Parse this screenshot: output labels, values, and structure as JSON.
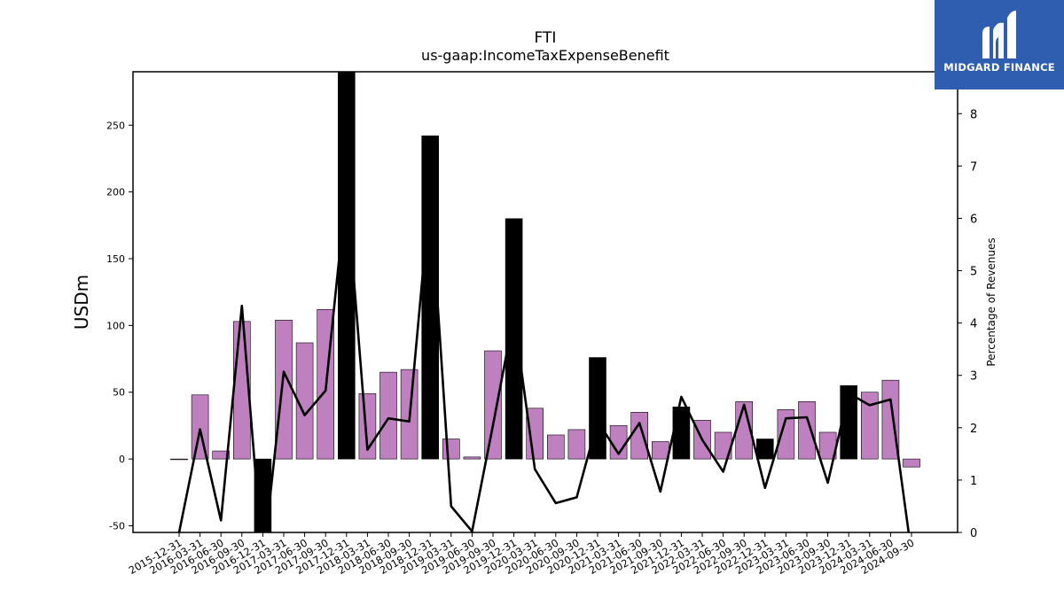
{
  "chart_data": {
    "type": "bar",
    "title": "FTI",
    "subtitle": "us-gaap:IncomeTaxExpenseBenefit",
    "ylabel": "USDm",
    "y2label": "Percentage of Revenues",
    "ylim": [
      -55,
      290
    ],
    "y2lim": [
      0,
      8.8
    ],
    "yticks": [
      -50,
      0,
      50,
      100,
      150,
      200,
      250
    ],
    "y2ticks": [
      0,
      1,
      2,
      3,
      4,
      5,
      6,
      7,
      8
    ],
    "grid": false,
    "categories": [
      "2015-12-31",
      "2016-03-31",
      "2016-06-30",
      "2016-09-30",
      "2016-12-31",
      "2017-03-31",
      "2017-06-30",
      "2017-09-30",
      "2017-12-31",
      "2018-03-31",
      "2018-06-30",
      "2018-09-30",
      "2018-12-31",
      "2019-03-31",
      "2019-06-30",
      "2019-09-30",
      "2019-12-31",
      "2020-03-31",
      "2020-06-30",
      "2020-09-30",
      "2020-12-31",
      "2021-03-31",
      "2021-06-30",
      "2021-09-30",
      "2021-12-31",
      "2022-03-31",
      "2022-06-30",
      "2022-09-30",
      "2022-12-31",
      "2023-03-31",
      "2023-06-30",
      "2023-09-30",
      "2023-12-31",
      "2024-03-31",
      "2024-06-30",
      "2024-09-30"
    ],
    "series": [
      {
        "kind": "bar",
        "values": [
          -0.5,
          48,
          6,
          103,
          -60,
          104,
          87,
          112,
          300,
          49,
          65,
          67,
          242,
          15,
          1.5,
          81,
          180,
          38,
          18,
          22,
          76,
          25,
          35,
          13,
          39,
          29,
          20,
          43,
          15,
          37,
          43,
          20,
          55,
          50,
          59,
          -6
        ],
        "highlight": [
          false,
          false,
          false,
          false,
          true,
          false,
          false,
          false,
          true,
          false,
          false,
          false,
          true,
          false,
          false,
          false,
          true,
          false,
          false,
          false,
          true,
          false,
          false,
          false,
          true,
          false,
          false,
          false,
          true,
          false,
          false,
          false,
          true,
          false,
          false,
          false
        ],
        "color": "#bf80bf",
        "highlight_color": "#000000"
      },
      {
        "kind": "line",
        "axis": "right",
        "values": [
          0,
          1.97,
          0.23,
          4.33,
          -0.6,
          3.07,
          2.24,
          2.71,
          6.6,
          1.58,
          2.18,
          2.12,
          6.5,
          0.5,
          0.02,
          2.05,
          4.15,
          1.21,
          0.56,
          0.67,
          2.13,
          1.5,
          2.09,
          0.78,
          2.59,
          1.77,
          1.16,
          2.44,
          0.85,
          2.18,
          2.2,
          0.95,
          2.66,
          2.43,
          2.54,
          -0.4
        ],
        "color": "#000000"
      }
    ]
  },
  "logo": {
    "text": "MIDGARD FINANCE"
  }
}
